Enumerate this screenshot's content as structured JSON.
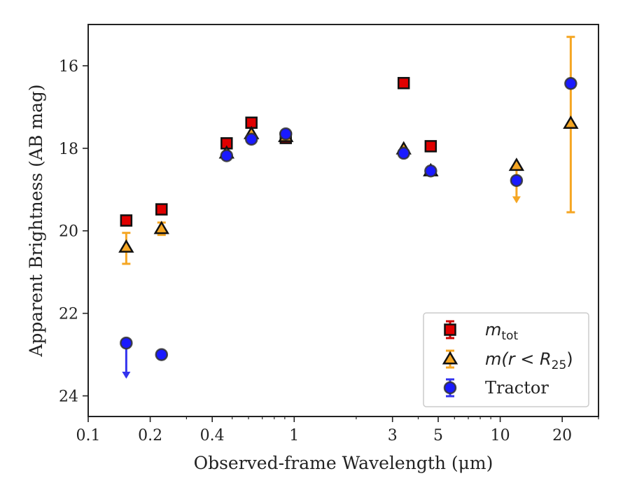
{
  "chart_data": {
    "type": "scatter",
    "xlabel": "Observed-frame Wavelength (μm)",
    "ylabel": "Apparent Brightness (AB mag)",
    "xscale": "log",
    "xlim": [
      0.1,
      30
    ],
    "ylim": [
      24.5,
      15.0
    ],
    "y_inverted": true,
    "xticks": [
      0.1,
      0.2,
      0.4,
      1,
      3,
      5,
      10,
      20
    ],
    "xtick_labels": [
      "0.1",
      "0.2",
      "0.4",
      "1",
      "3",
      "5",
      "10",
      "20"
    ],
    "yticks": [
      16,
      18,
      20,
      22,
      24
    ],
    "ytick_labels": [
      "16",
      "18",
      "20",
      "22",
      "24"
    ],
    "legend_position": "lower-right",
    "series": [
      {
        "name": "m_tot",
        "legend_label_main": "m",
        "legend_label_sub": "tot",
        "marker": "square",
        "color": "#e00000",
        "error_color": "#cc0000",
        "points": [
          {
            "x": 0.153,
            "y": 19.75
          },
          {
            "x": 0.227,
            "y": 19.48
          },
          {
            "x": 0.47,
            "y": 17.88
          },
          {
            "x": 0.62,
            "y": 17.38
          },
          {
            "x": 0.91,
            "y": 17.75
          },
          {
            "x": 3.4,
            "y": 16.42
          },
          {
            "x": 4.6,
            "y": 17.95
          }
        ]
      },
      {
        "name": "m(r < R25)",
        "legend_label_main": "m(r < R",
        "legend_label_sub": "25",
        "legend_label_tail": ")",
        "marker": "triangle",
        "color": "#f5a623",
        "error_color": "#f5a623",
        "points": [
          {
            "x": 0.153,
            "y": 20.4,
            "yerr": [
              20.05,
              20.8
            ]
          },
          {
            "x": 0.227,
            "y": 19.95,
            "yerr": [
              19.8,
              20.1
            ]
          },
          {
            "x": 0.47,
            "y": 18.12
          },
          {
            "x": 0.62,
            "y": 17.65
          },
          {
            "x": 0.91,
            "y": 17.72
          },
          {
            "x": 3.4,
            "y": 18.02
          },
          {
            "x": 4.6,
            "y": 18.55
          },
          {
            "x": 12.0,
            "y": 18.42,
            "upper_limit": true,
            "limit_to": 19.3
          },
          {
            "x": 22.0,
            "y": 17.4,
            "yerr": [
              15.3,
              19.55
            ]
          }
        ]
      },
      {
        "name": "Tractor",
        "marker": "circle",
        "color": "#1a1aff",
        "error_color": "#3333ee",
        "points": [
          {
            "x": 0.153,
            "y": 22.72,
            "upper_limit": true,
            "limit_to": 23.55
          },
          {
            "x": 0.227,
            "y": 23.0
          },
          {
            "x": 0.47,
            "y": 18.18
          },
          {
            "x": 0.62,
            "y": 17.78
          },
          {
            "x": 0.91,
            "y": 17.65
          },
          {
            "x": 3.4,
            "y": 18.12
          },
          {
            "x": 4.6,
            "y": 18.55
          },
          {
            "x": 12.0,
            "y": 18.78
          },
          {
            "x": 22.0,
            "y": 16.43
          }
        ]
      }
    ]
  }
}
